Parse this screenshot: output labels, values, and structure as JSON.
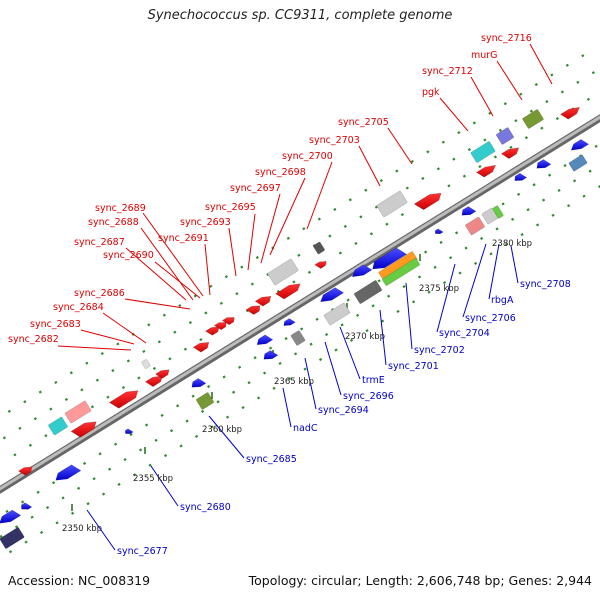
{
  "title": "Synechococcus sp. CC9311, complete genome",
  "footer": {
    "accession": "Accession: NC_008319",
    "summary": "Topology: circular; Length: 2,606,748 bp; Genes: 2,944"
  },
  "colors": {
    "top_label": "#dd0000",
    "bottom_label": "#0000cc",
    "backbone": "#999999",
    "tick": "#2e8b2e"
  },
  "kbp_labels": [
    "2350 kbp",
    "2355 kbp",
    "2360 kbp",
    "2365 kbp",
    "2370 kbp",
    "2375 kbp",
    "2380 kbp"
  ],
  "top_labels": [
    "sync_2682",
    "sync_2683",
    "sync_2684",
    "sync_2686",
    "sync_2687",
    "sync_2690",
    "sync_2688",
    "sync_2689",
    "sync_2691",
    "sync_2693",
    "sync_2695",
    "sync_2697",
    "sync_2698",
    "sync_2700",
    "sync_2703",
    "sync_2705",
    "pgk",
    "sync_2712",
    "murG",
    "sync_2716"
  ],
  "bottom_labels": [
    "sync_2677",
    "sync_2680",
    "sync_2685",
    "nadC",
    "sync_2694",
    "sync_2696",
    "trmE",
    "sync_2701",
    "sync_2702",
    "sync_2704",
    "sync_2706",
    "rbgA",
    "sync_2708"
  ]
}
